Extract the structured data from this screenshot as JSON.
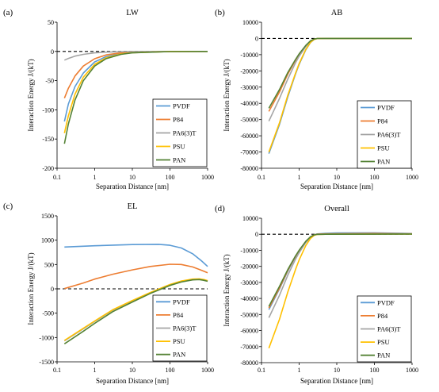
{
  "chart_data": [
    {
      "panel": "(a)",
      "title": "LW",
      "type": "line",
      "xlabel": "Separation Distance [nm]",
      "ylabel": "Interaction Energy J/(kT)",
      "xscale": "log",
      "xlim": [
        0.1,
        1000
      ],
      "ylim": [
        -200,
        50
      ],
      "xticks": [
        "0.1",
        "1",
        "10",
        "100",
        "1000"
      ],
      "yticks": [
        "50",
        "0",
        "-50",
        "-100",
        "-150",
        "-200"
      ],
      "reference_line": {
        "y": 0,
        "style": "dashed"
      },
      "legend": "bottom-right",
      "series": [
        {
          "name": "PVDF",
          "color": "#5b9bd5",
          "points": [
            [
              0.157,
              -120
            ],
            [
              0.2,
              -90
            ],
            [
              0.3,
              -60
            ],
            [
              0.5,
              -37
            ],
            [
              1,
              -18
            ],
            [
              2,
              -9
            ],
            [
              5,
              -3.5
            ],
            [
              10,
              -1.7
            ],
            [
              100,
              -0.2
            ],
            [
              1000,
              0
            ]
          ]
        },
        {
          "name": "P84",
          "color": "#ed7d31",
          "points": [
            [
              0.157,
              -80
            ],
            [
              0.2,
              -63
            ],
            [
              0.3,
              -42
            ],
            [
              0.5,
              -25
            ],
            [
              1,
              -12.5
            ],
            [
              2,
              -6
            ],
            [
              5,
              -2.4
            ],
            [
              10,
              -1.2
            ],
            [
              100,
              -0.1
            ],
            [
              1000,
              0
            ]
          ]
        },
        {
          "name": "PA6(3)T",
          "color": "#a5a5a5",
          "points": [
            [
              0.157,
              -15
            ],
            [
              0.2,
              -12
            ],
            [
              0.3,
              -8
            ],
            [
              0.5,
              -5
            ],
            [
              1,
              -2.4
            ],
            [
              2,
              -1.2
            ],
            [
              5,
              -0.5
            ],
            [
              10,
              -0.2
            ],
            [
              100,
              0
            ],
            [
              1000,
              0
            ]
          ]
        },
        {
          "name": "PSU",
          "color": "#ffc000",
          "points": [
            [
              0.157,
              -140
            ],
            [
              0.2,
              -110
            ],
            [
              0.3,
              -73
            ],
            [
              0.5,
              -44
            ],
            [
              1,
              -22
            ],
            [
              2,
              -11
            ],
            [
              5,
              -4.4
            ],
            [
              10,
              -2.2
            ],
            [
              100,
              -0.2
            ],
            [
              1000,
              0
            ]
          ]
        },
        {
          "name": "PAN",
          "color": "#548235",
          "points": [
            [
              0.157,
              -158
            ],
            [
              0.2,
              -124
            ],
            [
              0.3,
              -83
            ],
            [
              0.5,
              -50
            ],
            [
              1,
              -25
            ],
            [
              2,
              -12.5
            ],
            [
              5,
              -5
            ],
            [
              10,
              -2.5
            ],
            [
              100,
              -0.3
            ],
            [
              1000,
              0
            ]
          ]
        }
      ]
    },
    {
      "panel": "(b)",
      "title": "AB",
      "type": "line",
      "xlabel": "Separation Distance [nm]",
      "ylabel": "Interaction Energy J/(kT)",
      "xscale": "log",
      "xlim": [
        0.1,
        1000
      ],
      "ylim": [
        -80000,
        10000
      ],
      "xticks": [
        "0.1",
        "1",
        "10",
        "100",
        "1000"
      ],
      "yticks": [
        "10000",
        "0",
        "-10000",
        "-20000",
        "-30000",
        "-40000",
        "-50000",
        "-60000",
        "-70000",
        "-80000"
      ],
      "reference_line": {
        "y": 0,
        "style": "dashed"
      },
      "legend": "bottom-right",
      "series": [
        {
          "name": "PVDF",
          "color": "#5b9bd5",
          "points": [
            [
              0.157,
              -71000
            ],
            [
              0.3,
              -53000
            ],
            [
              0.5,
              -36000
            ],
            [
              0.8,
              -22000
            ],
            [
              1,
              -16000
            ],
            [
              1.5,
              -7000
            ],
            [
              2,
              -2500
            ],
            [
              2.5,
              -600
            ],
            [
              3,
              -100
            ],
            [
              5,
              0
            ],
            [
              1000,
              0
            ]
          ]
        },
        {
          "name": "P84",
          "color": "#ed7d31",
          "points": [
            [
              0.157,
              -45000
            ],
            [
              0.3,
              -33000
            ],
            [
              0.5,
              -22000
            ],
            [
              0.8,
              -13500
            ],
            [
              1,
              -10000
            ],
            [
              1.5,
              -4500
            ],
            [
              2,
              -1600
            ],
            [
              2.5,
              -400
            ],
            [
              3,
              -60
            ],
            [
              5,
              0
            ],
            [
              1000,
              0
            ]
          ]
        },
        {
          "name": "PA6(3)T",
          "color": "#a5a5a5",
          "points": [
            [
              0.157,
              -51000
            ],
            [
              0.3,
              -37000
            ],
            [
              0.5,
              -25000
            ],
            [
              0.8,
              -15000
            ],
            [
              1,
              -11000
            ],
            [
              1.5,
              -5000
            ],
            [
              2,
              -1800
            ],
            [
              2.5,
              -450
            ],
            [
              3,
              -70
            ],
            [
              5,
              0
            ],
            [
              1000,
              0
            ]
          ]
        },
        {
          "name": "PSU",
          "color": "#ffc000",
          "points": [
            [
              0.157,
              -70000
            ],
            [
              0.3,
              -52000
            ],
            [
              0.5,
              -35000
            ],
            [
              0.8,
              -21500
            ],
            [
              1,
              -15500
            ],
            [
              1.5,
              -6800
            ],
            [
              2,
              -2400
            ],
            [
              2.5,
              -600
            ],
            [
              3,
              -100
            ],
            [
              5,
              0
            ],
            [
              1000,
              0
            ]
          ]
        },
        {
          "name": "PAN",
          "color": "#548235",
          "points": [
            [
              0.157,
              -43000
            ],
            [
              0.3,
              -31500
            ],
            [
              0.5,
              -21000
            ],
            [
              0.8,
              -13000
            ],
            [
              1,
              -9500
            ],
            [
              1.5,
              -4300
            ],
            [
              2,
              -1500
            ],
            [
              2.5,
              -380
            ],
            [
              3,
              -50
            ],
            [
              5,
              0
            ],
            [
              1000,
              0
            ]
          ]
        }
      ]
    },
    {
      "panel": "(c)",
      "title": "EL",
      "type": "line",
      "xlabel": "Separation Distance [nm]",
      "ylabel": "Interaction Energy J/(kT)",
      "xscale": "log",
      "xlim": [
        0.1,
        1000
      ],
      "ylim": [
        -1500,
        1500
      ],
      "xticks": [
        "0.1",
        "1",
        "10",
        "100",
        "1000"
      ],
      "yticks": [
        "1500",
        "1000",
        "500",
        "0",
        "-500",
        "-1000",
        "-1500"
      ],
      "reference_line": {
        "y": 0,
        "style": "dashed"
      },
      "legend": "bottom-right",
      "series": [
        {
          "name": "PVDF",
          "color": "#5b9bd5",
          "points": [
            [
              0.157,
              860
            ],
            [
              1,
              885
            ],
            [
              10,
              910
            ],
            [
              50,
              915
            ],
            [
              100,
              895
            ],
            [
              200,
              840
            ],
            [
              400,
              720
            ],
            [
              700,
              570
            ],
            [
              1000,
              460
            ]
          ]
        },
        {
          "name": "P84",
          "color": "#ed7d31",
          "points": [
            [
              0.157,
              5
            ],
            [
              0.5,
              120
            ],
            [
              1,
              200
            ],
            [
              3,
              300
            ],
            [
              10,
              390
            ],
            [
              30,
              460
            ],
            [
              100,
              505
            ],
            [
              200,
              500
            ],
            [
              400,
              450
            ],
            [
              700,
              380
            ],
            [
              1000,
              330
            ]
          ]
        },
        {
          "name": "PA6(3)T",
          "color": "#a5a5a5",
          "points": [
            [
              0.157,
              -1070
            ],
            [
              0.5,
              -820
            ],
            [
              1,
              -670
            ],
            [
              3,
              -440
            ],
            [
              10,
              -250
            ],
            [
              30,
              -85
            ],
            [
              100,
              80
            ],
            [
              200,
              150
            ],
            [
              400,
              190
            ],
            [
              600,
              195
            ],
            [
              800,
              180
            ],
            [
              1000,
              160
            ]
          ]
        },
        {
          "name": "PSU",
          "color": "#ffc000",
          "points": [
            [
              0.157,
              -1060
            ],
            [
              0.5,
              -810
            ],
            [
              1,
              -660
            ],
            [
              3,
              -430
            ],
            [
              10,
              -240
            ],
            [
              30,
              -75
            ],
            [
              100,
              90
            ],
            [
              200,
              160
            ],
            [
              400,
              200
            ],
            [
              600,
              205
            ],
            [
              800,
              190
            ],
            [
              1000,
              170
            ]
          ]
        },
        {
          "name": "PAN",
          "color": "#548235",
          "points": [
            [
              0.157,
              -1130
            ],
            [
              0.5,
              -870
            ],
            [
              1,
              -710
            ],
            [
              3,
              -470
            ],
            [
              10,
              -270
            ],
            [
              30,
              -95
            ],
            [
              100,
              70
            ],
            [
              200,
              140
            ],
            [
              400,
              185
            ],
            [
              600,
              190
            ],
            [
              800,
              175
            ],
            [
              1000,
              155
            ]
          ]
        }
      ]
    },
    {
      "panel": "(d)",
      "title": "Overall",
      "type": "line",
      "xlabel": "Separation Distance [nm]",
      "ylabel": "Interaction Energy J/(kT)",
      "xscale": "log",
      "xlim": [
        0.1,
        1000
      ],
      "ylim": [
        -80000,
        10000
      ],
      "xticks": [
        "0.1",
        "1",
        "10",
        "100",
        "1000"
      ],
      "yticks": [
        "10000",
        "0",
        "-10000",
        "-20000",
        "-30000",
        "-40000",
        "-50000",
        "-60000",
        "-70000",
        "-80000"
      ],
      "reference_line": {
        "y": 0,
        "style": "dashed"
      },
      "legend": "bottom-right",
      "series": [
        {
          "name": "PVDF",
          "color": "#5b9bd5",
          "points": [
            [
              0.157,
              -47000
            ],
            [
              0.3,
              -34000
            ],
            [
              0.5,
              -23000
            ],
            [
              0.8,
              -14000
            ],
            [
              1,
              -10500
            ],
            [
              1.5,
              -4700
            ],
            [
              2,
              -1700
            ],
            [
              2.5,
              -400
            ],
            [
              3,
              200
            ],
            [
              5,
              600
            ],
            [
              10,
              850
            ],
            [
              100,
              900
            ],
            [
              1000,
              460
            ]
          ]
        },
        {
          "name": "P84",
          "color": "#ed7d31",
          "points": [
            [
              0.157,
              -46000
            ],
            [
              0.3,
              -33500
            ],
            [
              0.5,
              -22500
            ],
            [
              0.8,
              -13800
            ],
            [
              1,
              -10200
            ],
            [
              1.5,
              -4500
            ],
            [
              2,
              -1600
            ],
            [
              2.5,
              -400
            ],
            [
              3,
              100
            ],
            [
              5,
              250
            ],
            [
              10,
              380
            ],
            [
              100,
              500
            ],
            [
              1000,
              330
            ]
          ]
        },
        {
          "name": "PA6(3)T",
          "color": "#a5a5a5",
          "points": [
            [
              0.157,
              -52000
            ],
            [
              0.3,
              -38000
            ],
            [
              0.5,
              -25500
            ],
            [
              0.8,
              -15500
            ],
            [
              1,
              -11500
            ],
            [
              1.5,
              -5200
            ],
            [
              2,
              -1900
            ],
            [
              2.5,
              -500
            ],
            [
              3,
              -100
            ],
            [
              5,
              0
            ],
            [
              100,
              80
            ],
            [
              1000,
              160
            ]
          ]
        },
        {
          "name": "PSU",
          "color": "#ffc000",
          "points": [
            [
              0.157,
              -71000
            ],
            [
              0.3,
              -53000
            ],
            [
              0.5,
              -36000
            ],
            [
              0.8,
              -22000
            ],
            [
              1,
              -16000
            ],
            [
              1.5,
              -7000
            ],
            [
              2,
              -2600
            ],
            [
              2.5,
              -700
            ],
            [
              3,
              -150
            ],
            [
              5,
              0
            ],
            [
              100,
              90
            ],
            [
              1000,
              170
            ]
          ]
        },
        {
          "name": "PAN",
          "color": "#548235",
          "points": [
            [
              0.157,
              -45000
            ],
            [
              0.3,
              -32500
            ],
            [
              0.5,
              -22000
            ],
            [
              0.8,
              -13500
            ],
            [
              1,
              -10000
            ],
            [
              1.5,
              -4400
            ],
            [
              2,
              -1600
            ],
            [
              2.5,
              -400
            ],
            [
              3,
              -60
            ],
            [
              5,
              0
            ],
            [
              100,
              70
            ],
            [
              1000,
              155
            ]
          ]
        }
      ]
    }
  ]
}
